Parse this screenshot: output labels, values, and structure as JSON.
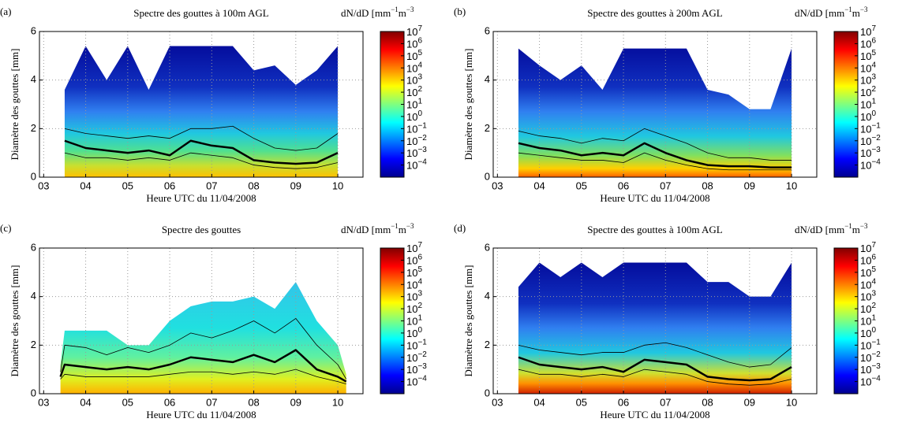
{
  "chart_data": [
    {
      "type": "line",
      "panel_label": "(a)",
      "title": "Spectre des gouttes à 100m AGL",
      "colorbar_label": [
        "dN/dD  [mm",
        "−1",
        "m",
        "−3"
      ],
      "xlabel": "Heure UTC du 11/04/2008",
      "ylabel": "Diamètre des gouttes [mm]",
      "xlim": [
        2.9,
        10.6
      ],
      "xticks": [
        {
          "value": 3,
          "label": "03"
        },
        {
          "value": 4,
          "label": "04"
        },
        {
          "value": 5,
          "label": "05"
        },
        {
          "value": 6,
          "label": "06"
        },
        {
          "value": 7,
          "label": "07"
        },
        {
          "value": 8,
          "label": "08"
        },
        {
          "value": 9,
          "label": "09"
        },
        10
      ],
      "ylim": [
        0,
        6
      ],
      "yticks": [
        0,
        2,
        4,
        6
      ],
      "grid": true,
      "clim": [
        1e-05,
        10000000
      ],
      "cticks": [
        {
          "value": 0.0001,
          "label": [
            "10",
            "−4"
          ]
        },
        {
          "value": 0.001,
          "label": [
            "10",
            "−3"
          ]
        },
        {
          "value": 0.01,
          "label": [
            "10",
            "−2"
          ]
        },
        {
          "value": 0.1,
          "label": [
            "10",
            "−1"
          ]
        },
        {
          "value": 1,
          "label": [
            "10",
            "0"
          ]
        },
        {
          "value": 10,
          "label": [
            "10",
            "1"
          ]
        },
        {
          "value": 100,
          "label": [
            "10",
            "2"
          ]
        },
        {
          "value": 1000,
          "label": [
            "10",
            "3"
          ]
        },
        {
          "value": 10000,
          "label": [
            "10",
            "4"
          ]
        },
        {
          "value": 100000,
          "label": [
            "10",
            "5"
          ]
        },
        {
          "value": 1000000,
          "label": [
            "10",
            "6"
          ]
        },
        {
          "value": 10000000,
          "label": [
            "10",
            "7"
          ]
        }
      ],
      "x": [
        3.5,
        4,
        4.5,
        5,
        5.5,
        6,
        6.5,
        7,
        7.5,
        8,
        8.5,
        9,
        9.5,
        10
      ],
      "field_top": [
        3.6,
        5.4,
        4.0,
        5.4,
        3.6,
        5.4,
        5.4,
        5.4,
        5.4,
        4.4,
        4.6,
        3.8,
        4.4,
        5.4
      ],
      "series": [
        {
          "color": "#000000",
          "line_width": 0.8,
          "values": [
            2.0,
            1.8,
            1.7,
            1.6,
            1.7,
            1.6,
            2.0,
            2.0,
            2.1,
            1.6,
            1.2,
            1.1,
            1.2,
            1.8
          ]
        },
        {
          "color": "#000000",
          "line_width": 2.5,
          "values": [
            1.5,
            1.2,
            1.1,
            1.0,
            1.1,
            0.9,
            1.5,
            1.3,
            1.2,
            0.7,
            0.6,
            0.55,
            0.6,
            1.0
          ]
        },
        {
          "color": "#000000",
          "line_width": 0.8,
          "values": [
            1.0,
            0.8,
            0.8,
            0.7,
            0.8,
            0.7,
            1.0,
            0.9,
            0.8,
            0.5,
            0.4,
            0.35,
            0.4,
            0.6
          ]
        }
      ]
    },
    {
      "type": "line",
      "panel_label": "(b)",
      "title": "Spectre des gouttes à 200m AGL",
      "colorbar_label": [
        "dN/dD  [mm",
        "−1",
        "m",
        "−3"
      ],
      "xlabel": "Heure UTC du 11/04/2008",
      "ylabel": "Diamètre des gouttes [mm]",
      "xlim": [
        2.9,
        10.6
      ],
      "xticks": [
        {
          "value": 3,
          "label": "03"
        },
        {
          "value": 4,
          "label": "04"
        },
        {
          "value": 5,
          "label": "05"
        },
        {
          "value": 6,
          "label": "06"
        },
        {
          "value": 7,
          "label": "07"
        },
        {
          "value": 8,
          "label": "08"
        },
        {
          "value": 9,
          "label": "09"
        },
        10
      ],
      "ylim": [
        0,
        6
      ],
      "yticks": [
        0,
        2,
        4,
        6
      ],
      "grid": true,
      "clim": [
        1e-05,
        10000000
      ],
      "cticks": [
        {
          "value": 0.0001,
          "label": [
            "10",
            "−4"
          ]
        },
        {
          "value": 0.001,
          "label": [
            "10",
            "−3"
          ]
        },
        {
          "value": 0.01,
          "label": [
            "10",
            "−2"
          ]
        },
        {
          "value": 0.1,
          "label": [
            "10",
            "−1"
          ]
        },
        {
          "value": 1,
          "label": [
            "10",
            "0"
          ]
        },
        {
          "value": 10,
          "label": [
            "10",
            "1"
          ]
        },
        {
          "value": 100,
          "label": [
            "10",
            "2"
          ]
        },
        {
          "value": 1000,
          "label": [
            "10",
            "3"
          ]
        },
        {
          "value": 10000,
          "label": [
            "10",
            "4"
          ]
        },
        {
          "value": 100000,
          "label": [
            "10",
            "5"
          ]
        },
        {
          "value": 1000000,
          "label": [
            "10",
            "6"
          ]
        },
        {
          "value": 10000000,
          "label": [
            "10",
            "7"
          ]
        }
      ],
      "x": [
        3.5,
        4,
        4.5,
        5,
        5.5,
        6,
        6.5,
        7,
        7.5,
        8,
        8.5,
        9,
        9.5,
        10
      ],
      "field_top": [
        5.3,
        4.6,
        4.0,
        4.6,
        3.6,
        5.3,
        5.3,
        5.3,
        5.3,
        3.6,
        3.4,
        2.8,
        2.8,
        5.3
      ],
      "series": [
        {
          "color": "#000000",
          "line_width": 0.8,
          "values": [
            1.9,
            1.7,
            1.6,
            1.4,
            1.6,
            1.5,
            2.0,
            1.7,
            1.4,
            1.0,
            0.8,
            0.8,
            0.7,
            0.7
          ]
        },
        {
          "color": "#000000",
          "line_width": 2.5,
          "values": [
            1.4,
            1.2,
            1.1,
            0.9,
            1.0,
            0.9,
            1.4,
            1.0,
            0.7,
            0.5,
            0.45,
            0.45,
            0.4,
            0.4
          ]
        },
        {
          "color": "#000000",
          "line_width": 0.8,
          "values": [
            1.0,
            0.9,
            0.8,
            0.7,
            0.7,
            0.6,
            1.0,
            0.7,
            0.5,
            0.35,
            0.3,
            0.3,
            0.3,
            0.3
          ]
        }
      ]
    },
    {
      "type": "line",
      "panel_label": "(c)",
      "title": "Spectre des gouttes",
      "colorbar_label": [
        "dN/dD  [mm",
        "−1",
        "m",
        "−3"
      ],
      "xlabel": "Heure UTC du 11/04/2008",
      "ylabel": "Diamètre des gouttes [mm]",
      "xlim": [
        2.9,
        10.6
      ],
      "xticks": [
        {
          "value": 3,
          "label": "03"
        },
        {
          "value": 4,
          "label": "04"
        },
        {
          "value": 5,
          "label": "05"
        },
        {
          "value": 6,
          "label": "06"
        },
        {
          "value": 7,
          "label": "07"
        },
        {
          "value": 8,
          "label": "08"
        },
        {
          "value": 9,
          "label": "09"
        },
        10
      ],
      "ylim": [
        0,
        6
      ],
      "yticks": [
        0,
        2,
        4,
        6
      ],
      "grid": true,
      "clim": [
        1e-05,
        10000000
      ],
      "cticks": [
        {
          "value": 0.0001,
          "label": [
            "10",
            "−4"
          ]
        },
        {
          "value": 0.001,
          "label": [
            "10",
            "−3"
          ]
        },
        {
          "value": 0.01,
          "label": [
            "10",
            "−2"
          ]
        },
        {
          "value": 0.1,
          "label": [
            "10",
            "−1"
          ]
        },
        {
          "value": 1,
          "label": [
            "10",
            "0"
          ]
        },
        {
          "value": 10,
          "label": [
            "10",
            "1"
          ]
        },
        {
          "value": 100,
          "label": [
            "10",
            "2"
          ]
        },
        {
          "value": 1000,
          "label": [
            "10",
            "3"
          ]
        },
        {
          "value": 10000,
          "label": [
            "10",
            "4"
          ]
        },
        {
          "value": 100000,
          "label": [
            "10",
            "5"
          ]
        },
        {
          "value": 1000000,
          "label": [
            "10",
            "6"
          ]
        },
        {
          "value": 10000000,
          "label": [
            "10",
            "7"
          ]
        }
      ],
      "x": [
        3.4,
        3.5,
        4,
        4.5,
        5,
        5.5,
        6,
        6.5,
        7,
        7.5,
        8,
        8.5,
        9,
        9.5,
        10,
        10.2
      ],
      "field_top": [
        1.2,
        2.6,
        2.6,
        2.6,
        2.0,
        2.0,
        3.0,
        3.6,
        3.8,
        3.8,
        4.0,
        3.5,
        4.6,
        3.0,
        2.0,
        0.8
      ],
      "series": [
        {
          "color": "#000000",
          "line_width": 0.8,
          "values": [
            0.9,
            2.0,
            1.9,
            1.6,
            1.9,
            1.7,
            2.0,
            2.5,
            2.3,
            2.6,
            3.0,
            2.5,
            3.1,
            2.0,
            1.2,
            0.6
          ]
        },
        {
          "color": "#000000",
          "line_width": 2.5,
          "values": [
            0.7,
            1.2,
            1.1,
            1.0,
            1.1,
            1.0,
            1.2,
            1.5,
            1.4,
            1.3,
            1.6,
            1.3,
            1.8,
            1.0,
            0.7,
            0.5
          ]
        },
        {
          "color": "#000000",
          "line_width": 0.8,
          "values": [
            0.6,
            0.8,
            0.7,
            0.7,
            0.7,
            0.7,
            0.8,
            0.9,
            0.9,
            0.8,
            0.9,
            0.8,
            1.0,
            0.7,
            0.5,
            0.4
          ]
        }
      ]
    },
    {
      "type": "line",
      "panel_label": "(d)",
      "title": "Spectre des gouttes à 100m AGL",
      "colorbar_label": [
        "dN/dD  [mm",
        "−1",
        "m",
        "−3"
      ],
      "xlabel": "Heure UTC du 11/04/2008",
      "ylabel": "Diamètre des gouttes [mm]",
      "xlim": [
        2.9,
        10.6
      ],
      "xticks": [
        {
          "value": 3,
          "label": "03"
        },
        {
          "value": 4,
          "label": "04"
        },
        {
          "value": 5,
          "label": "05"
        },
        {
          "value": 6,
          "label": "06"
        },
        {
          "value": 7,
          "label": "07"
        },
        {
          "value": 8,
          "label": "08"
        },
        {
          "value": 9,
          "label": "09"
        },
        10
      ],
      "ylim": [
        0,
        6
      ],
      "yticks": [
        0,
        2,
        4,
        6
      ],
      "grid": true,
      "clim": [
        1e-05,
        10000000
      ],
      "cticks": [
        {
          "value": 0.0001,
          "label": [
            "10",
            "−4"
          ]
        },
        {
          "value": 0.001,
          "label": [
            "10",
            "−3"
          ]
        },
        {
          "value": 0.01,
          "label": [
            "10",
            "−2"
          ]
        },
        {
          "value": 0.1,
          "label": [
            "10",
            "−1"
          ]
        },
        {
          "value": 1,
          "label": [
            "10",
            "0"
          ]
        },
        {
          "value": 10,
          "label": [
            "10",
            "1"
          ]
        },
        {
          "value": 100,
          "label": [
            "10",
            "2"
          ]
        },
        {
          "value": 1000,
          "label": [
            "10",
            "3"
          ]
        },
        {
          "value": 10000,
          "label": [
            "10",
            "4"
          ]
        },
        {
          "value": 100000,
          "label": [
            "10",
            "5"
          ]
        },
        {
          "value": 1000000,
          "label": [
            "10",
            "6"
          ]
        },
        {
          "value": 10000000,
          "label": [
            "10",
            "7"
          ]
        }
      ],
      "x": [
        3.5,
        4,
        4.5,
        5,
        5.5,
        6,
        6.5,
        7,
        7.5,
        8,
        8.5,
        9,
        9.5,
        10
      ],
      "field_top": [
        4.4,
        5.4,
        4.8,
        5.4,
        4.8,
        5.4,
        5.4,
        5.4,
        5.4,
        4.6,
        4.6,
        4.0,
        4.0,
        5.4
      ],
      "series": [
        {
          "color": "#000000",
          "line_width": 0.8,
          "values": [
            2.0,
            1.8,
            1.7,
            1.6,
            1.7,
            1.7,
            2.0,
            2.1,
            1.9,
            1.6,
            1.3,
            1.1,
            1.2,
            1.9
          ]
        },
        {
          "color": "#000000",
          "line_width": 2.5,
          "values": [
            1.5,
            1.2,
            1.1,
            1.0,
            1.1,
            0.9,
            1.4,
            1.3,
            1.2,
            0.7,
            0.6,
            0.55,
            0.6,
            1.1
          ]
        },
        {
          "color": "#000000",
          "line_width": 0.8,
          "values": [
            1.0,
            0.8,
            0.8,
            0.7,
            0.8,
            0.7,
            1.0,
            0.9,
            0.8,
            0.5,
            0.4,
            0.35,
            0.4,
            0.6
          ]
        }
      ]
    }
  ]
}
